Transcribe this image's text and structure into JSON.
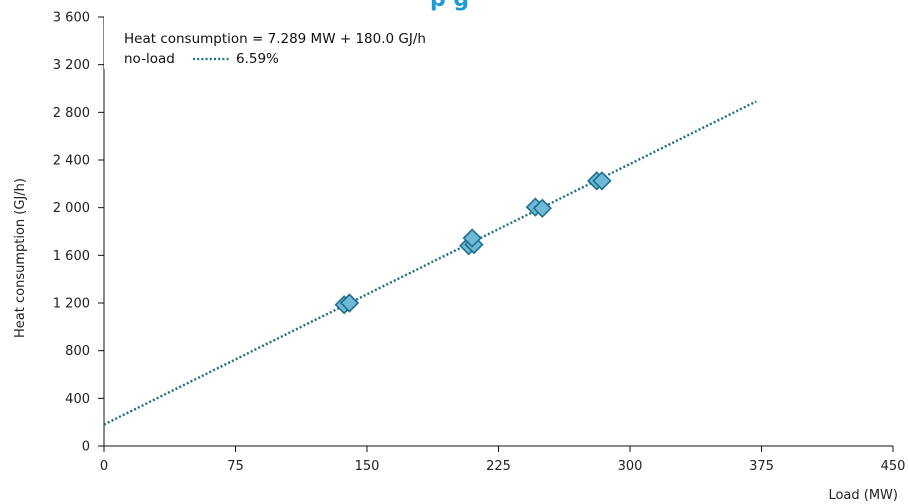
{
  "chart_data": {
    "type": "scatter",
    "title_fragment": "p   g",
    "xlabel": "Load (MW)",
    "ylabel": "Heat consumption (GJ/h)",
    "xlim": [
      0,
      450
    ],
    "ylim": [
      0,
      3600
    ],
    "x_ticks": [
      0,
      75,
      150,
      225,
      300,
      375,
      450
    ],
    "x_tick_labels": [
      "0",
      "75",
      "150",
      "225",
      "300",
      "375",
      "450"
    ],
    "y_ticks": [
      0,
      400,
      800,
      1200,
      1600,
      2000,
      2400,
      2800,
      3200,
      3600
    ],
    "y_tick_labels": [
      "0",
      "400",
      "800",
      "1 200",
      "1 600",
      "2 000",
      "2 400",
      "2 800",
      "3 200",
      "3 600"
    ],
    "grid": false,
    "legend": {
      "placement": "top-left",
      "equation": "Heat consumption  = 7.289  MW + 180.0  GJ/h",
      "no_load_label": "no-load",
      "no_load_value": "6.59%"
    },
    "fit_line": {
      "slope": 7.289,
      "intercept": 180.0,
      "x_start": 0,
      "x_end": 372,
      "style": "dotted",
      "color": "#1b6d8a"
    },
    "series": [
      {
        "marker": "diamond",
        "fill": "#6fb8d6",
        "stroke": "#1e6f8c",
        "points": [
          {
            "x": 137,
            "y": 1185
          },
          {
            "x": 140,
            "y": 1200
          },
          {
            "x": 208,
            "y": 1680
          },
          {
            "x": 211,
            "y": 1690
          },
          {
            "x": 210,
            "y": 1745
          },
          {
            "x": 246,
            "y": 2005
          },
          {
            "x": 250,
            "y": 1995
          },
          {
            "x": 281,
            "y": 2225
          },
          {
            "x": 284,
            "y": 2225
          }
        ]
      }
    ]
  }
}
